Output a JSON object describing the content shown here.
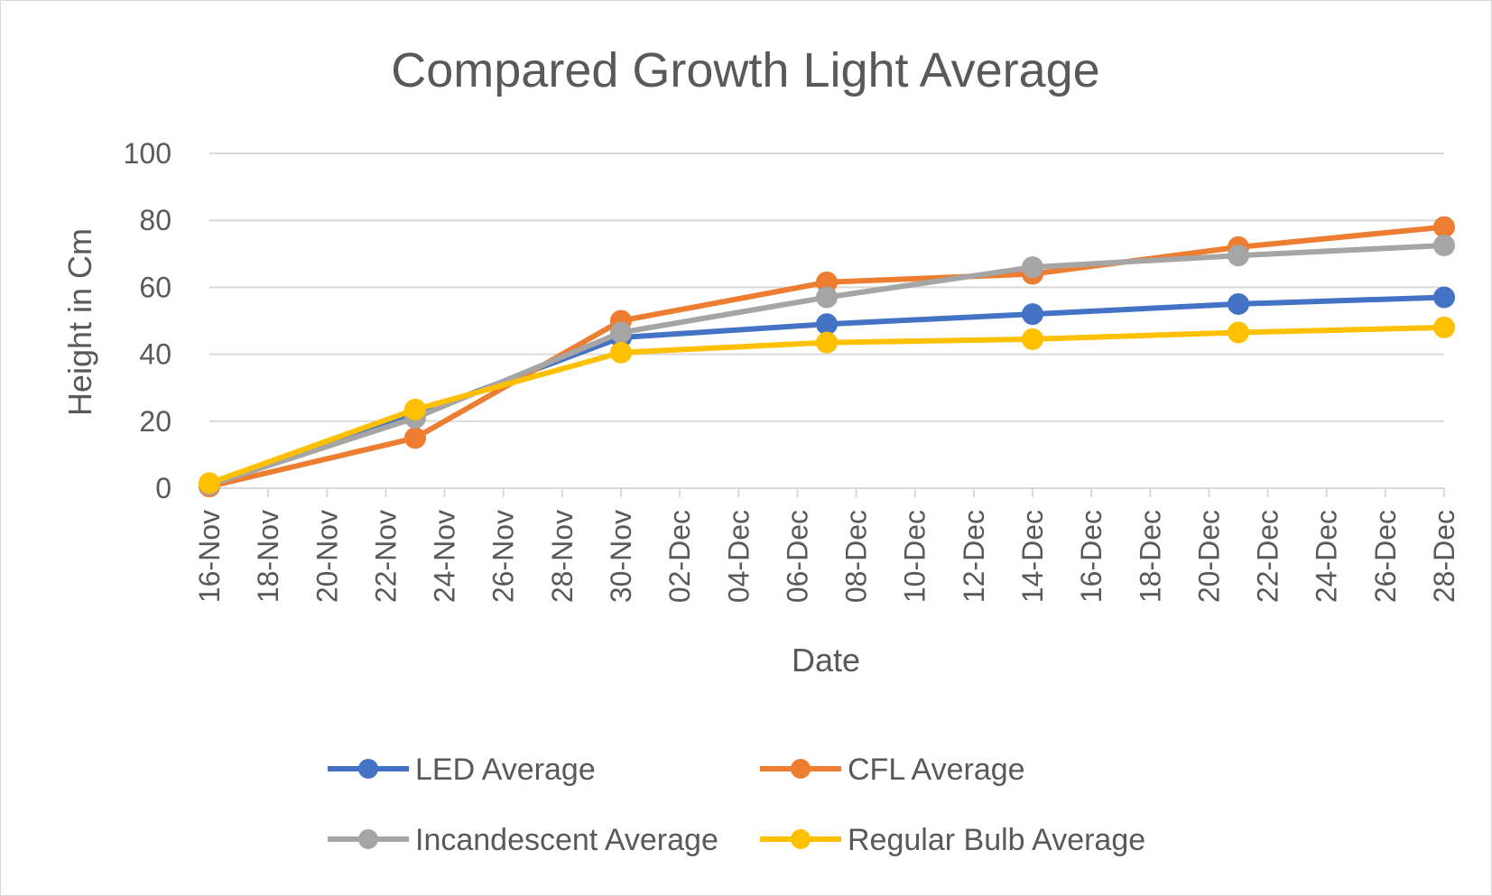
{
  "chart_data": {
    "type": "line",
    "title": "Compared Growth Light Average",
    "xlabel": "Date",
    "ylabel": "Height in Cm",
    "ylim": [
      0,
      100
    ],
    "yticks": [
      "0",
      "20",
      "40",
      "60",
      "80",
      "100"
    ],
    "xlim": [
      "16-Nov",
      "28-Dec"
    ],
    "xticks": [
      "16-Nov",
      "18-Nov",
      "20-Nov",
      "22-Nov",
      "24-Nov",
      "26-Nov",
      "28-Nov",
      "30-Nov",
      "02-Dec",
      "04-Dec",
      "06-Dec",
      "08-Dec",
      "10-Dec",
      "12-Dec",
      "14-Dec",
      "16-Dec",
      "18-Dec",
      "20-Dec",
      "22-Dec",
      "24-Dec",
      "26-Dec",
      "28-Dec"
    ],
    "x": [
      "16-Nov",
      "23-Nov",
      "30-Nov",
      "07-Dec",
      "14-Dec",
      "21-Dec",
      "28-Dec"
    ],
    "grid": "horizontal",
    "legend_position": "bottom",
    "series": [
      {
        "name": "LED Average",
        "color": "#4472c4",
        "values": [
          1,
          22,
          45,
          49,
          52,
          55,
          57
        ]
      },
      {
        "name": "CFL Average",
        "color": "#ed7d31",
        "values": [
          0.5,
          15,
          50,
          61.5,
          64,
          72,
          78
        ]
      },
      {
        "name": "Incandescent Average",
        "color": "#a5a5a5",
        "values": [
          1,
          21,
          46.5,
          57,
          66,
          69.5,
          72.5
        ]
      },
      {
        "name": "Regular Bulb Average",
        "color": "#ffc000",
        "values": [
          1.5,
          23.5,
          40.5,
          43.5,
          44.5,
          46.5,
          48
        ]
      }
    ]
  }
}
